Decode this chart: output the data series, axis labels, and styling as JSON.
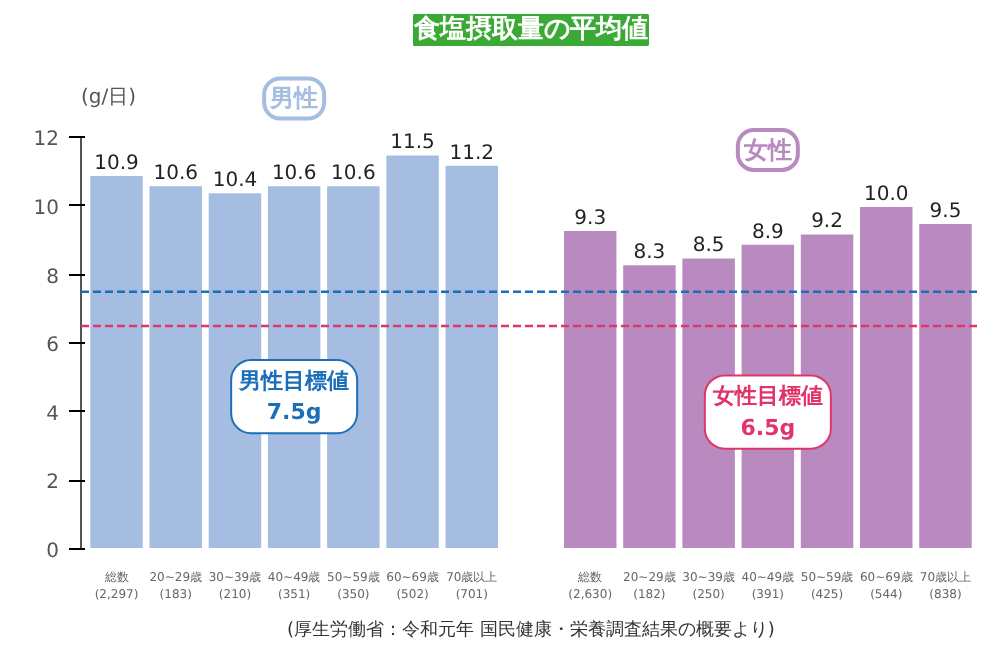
{
  "chart_data": {
    "type": "bar",
    "title": "食塩摂取量の平均値",
    "ylabel": "(g/日)",
    "categories": [
      "総数\n(2,297)",
      "20~29歳\n(183)",
      "30~39歳\n(210)",
      "40~49歳\n(351)",
      "50~59歳\n(350)",
      "60~69歳\n(502)",
      "70歳以上\n(701)",
      null,
      "総数\n(2,630)",
      "20~29歳\n(182)",
      "30~39歳\n(250)",
      "40~49歳\n(391)",
      "50~59歳\n(425)",
      "60~69歳\n(544)",
      "70歳以上\n(838)"
    ],
    "series": [
      {
        "name": "男性",
        "color": "#a4bde0",
        "values": [
          10.9,
          10.6,
          10.4,
          10.6,
          10.6,
          11.5,
          11.2,
          null,
          null,
          null,
          null,
          null,
          null,
          null,
          null
        ],
        "value_labels": [
          "10.9",
          "10.6",
          "10.4",
          "10.6",
          "10.6",
          "11.5",
          "11.2",
          null,
          null,
          null,
          null,
          null,
          null,
          null,
          null
        ]
      },
      {
        "name": "女性",
        "color": "#b98ac0",
        "values": [
          null,
          null,
          null,
          null,
          null,
          null,
          null,
          null,
          9.3,
          8.3,
          8.5,
          8.9,
          9.2,
          10.0,
          9.5
        ],
        "value_labels": [
          null,
          null,
          null,
          null,
          null,
          null,
          null,
          null,
          "9.3",
          "8.3",
          "8.5",
          "8.9",
          "9.2",
          "10.0",
          "9.5"
        ]
      }
    ],
    "ylim": [
      0,
      12
    ],
    "yticks": [
      0,
      2,
      4,
      6,
      8,
      10,
      12
    ],
    "ref_lines": [
      {
        "axis": "y",
        "value": 7.5,
        "label": "男性目標値\n7.5g",
        "color": "#1a6fb8",
        "line_style": "dashed"
      },
      {
        "axis": "y",
        "value": 6.5,
        "label": "女性目標値\n6.5g",
        "color": "#e0356b",
        "line_style": "dashed"
      }
    ],
    "annotations": [
      "(厚生労働省：令和元年 国民健康・栄養調査結果の概要より)"
    ]
  }
}
